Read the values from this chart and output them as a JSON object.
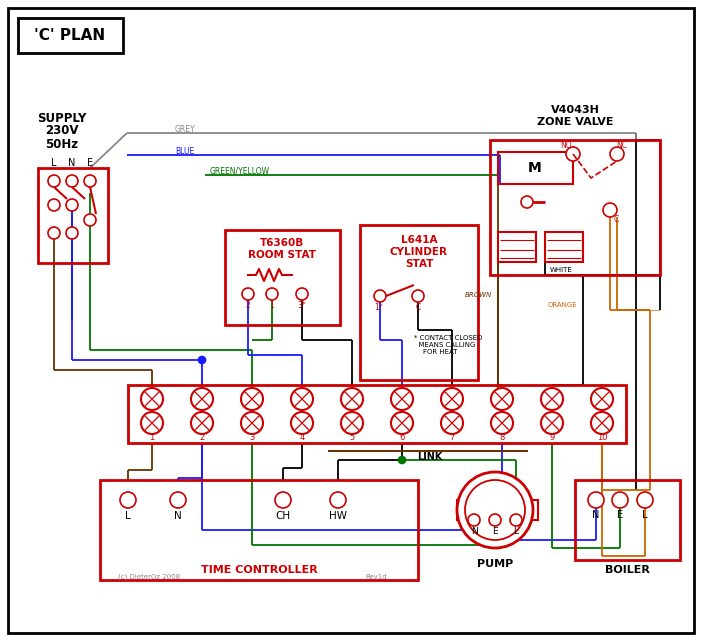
{
  "title": "'C' PLAN",
  "bg": "#ffffff",
  "black": "#000000",
  "red": "#cc0000",
  "blue": "#1a1aff",
  "green": "#007700",
  "brown": "#663300",
  "grey": "#888888",
  "orange": "#cc6600",
  "supply_text": "SUPPLY\n230V\n50Hz",
  "zone_valve_title1": "V4043H",
  "zone_valve_title2": "ZONE VALVE",
  "room_stat_title1": "T6360B",
  "room_stat_title2": "ROOM STAT",
  "cyl_stat_title1": "L641A",
  "cyl_stat_title2": "CYLINDER",
  "cyl_stat_title3": "STAT",
  "time_controller_label": "TIME CONTROLLER",
  "pump_label": "PUMP",
  "boiler_label": "BOILER",
  "terminal_labels": [
    "1",
    "2",
    "3",
    "4",
    "5",
    "6",
    "7",
    "8",
    "9",
    "10"
  ],
  "tc_terminals": [
    "L",
    "N",
    "CH",
    "HW"
  ],
  "pump_terminals": [
    "N",
    "E",
    "L"
  ],
  "boiler_terminals": [
    "N",
    "E",
    "L"
  ],
  "lne_labels": [
    "L",
    "N",
    "E"
  ],
  "wire_grey_label": "GREY",
  "wire_blue_label": "BLUE",
  "wire_gy_label": "GREEN/YELLOW",
  "wire_brown_label": "BROWN",
  "wire_white_label": "WHITE",
  "wire_orange_label": "ORANGE",
  "wire_link_label": "LINK",
  "contact_note": "* CONTACT CLOSED\n  MEANS CALLING\n    FOR HEAT",
  "no_label": "NO",
  "nc_label": "NC",
  "c_label": "C",
  "m_label": "M",
  "copyright": "(c) DieterOz 2008",
  "rev": "Rev1d"
}
